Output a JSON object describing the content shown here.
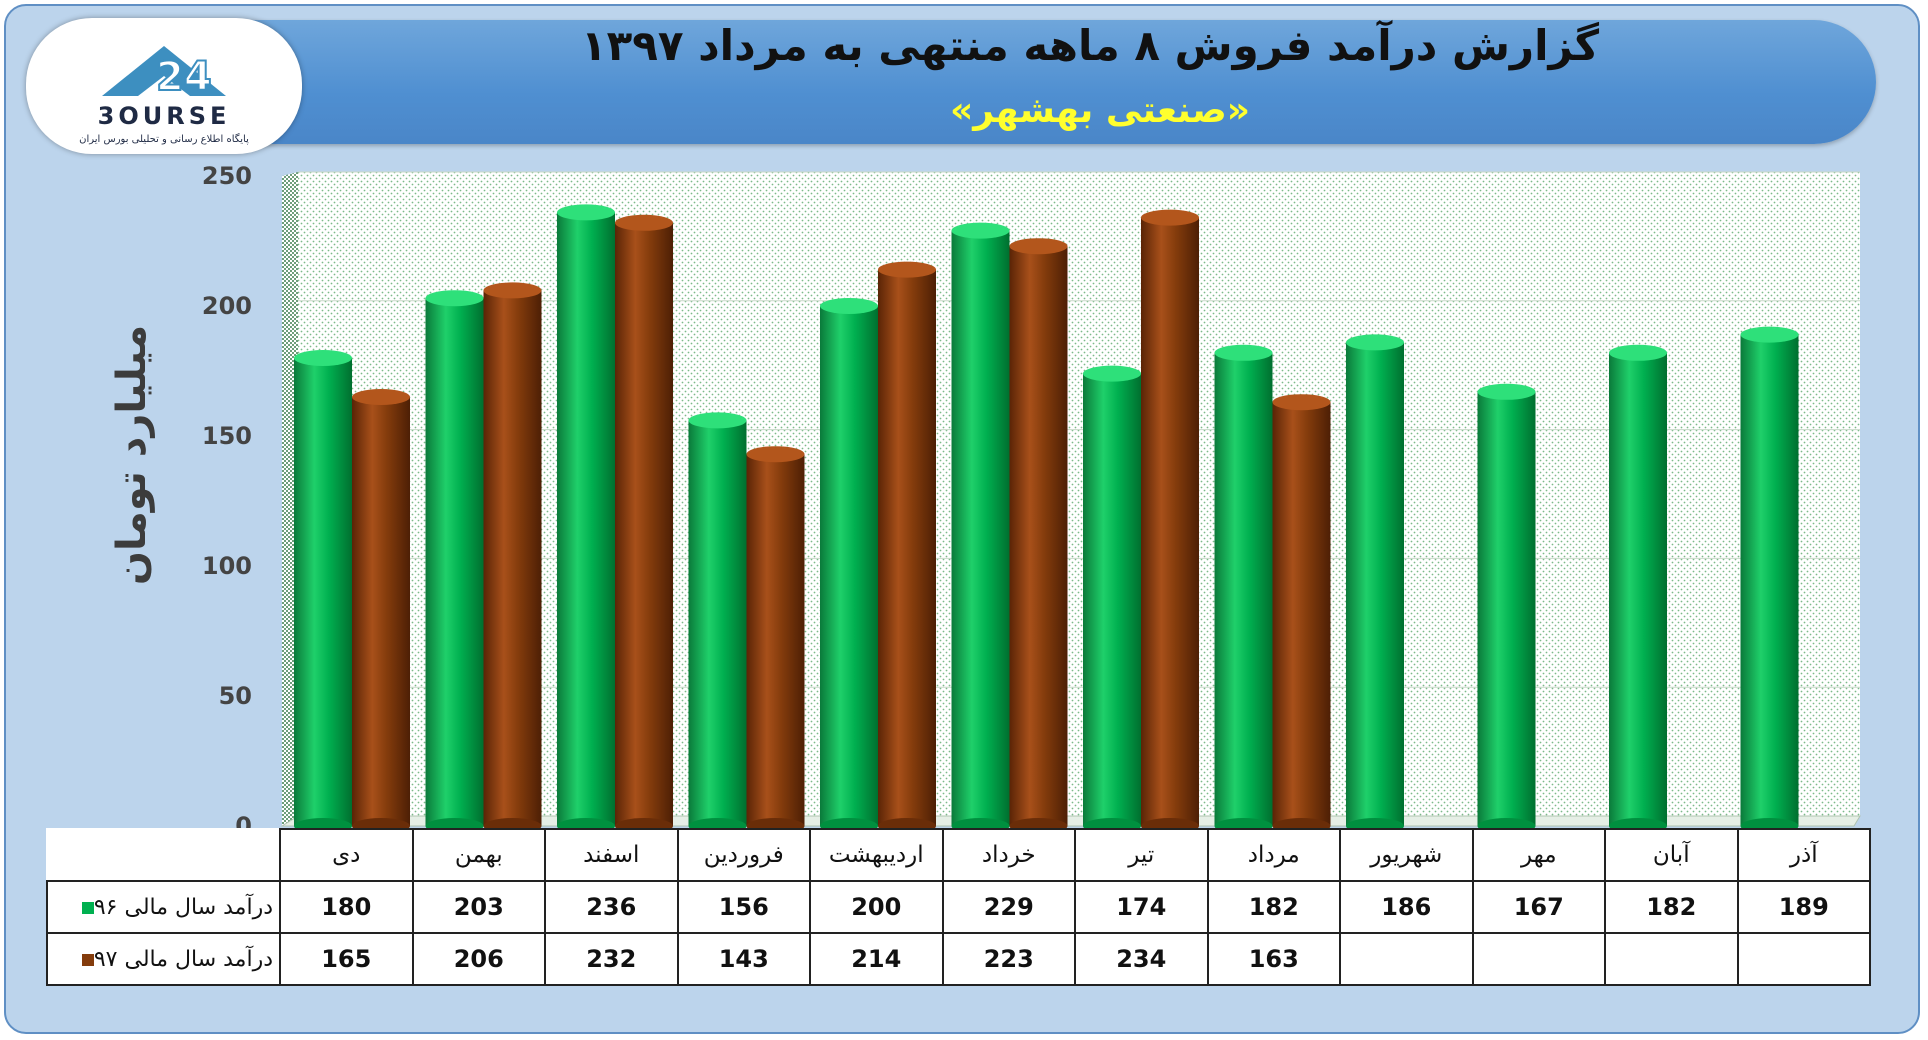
{
  "header": {
    "title": "گزارش درآمد فروش ۸ ماهه منتهی به مرداد ۱۳۹۷",
    "subtitle": "«صنعتی بهشهر»"
  },
  "logo": {
    "brand_text": "3OURSE",
    "tagline": "پایگاه اطلاع رسانی و تحلیلی بورس ایران"
  },
  "colors": {
    "series_96": "#00b050",
    "series_97": "#843c0c",
    "header_band": "#4f8fd1",
    "subtitle": "#ffff2e",
    "frame": "#bcd4ec"
  },
  "chart_data": {
    "type": "bar",
    "title": "گزارش درآمد فروش ۸ ماهه منتهی به مرداد ۱۳۹۷",
    "subtitle": "«صنعتی بهشهر»",
    "ylabel": "میلیارد تومان",
    "xlabel": "",
    "ylim": [
      0,
      250
    ],
    "yticks": [
      0,
      50,
      100,
      150,
      200,
      250
    ],
    "grid": true,
    "legend": "table-left",
    "categories": [
      "دی",
      "بهمن",
      "اسفند",
      "فروردین",
      "اردیبهشت",
      "خرداد",
      "تیر",
      "مرداد",
      "شهریور",
      "مهر",
      "آبان",
      "آذر"
    ],
    "series": [
      {
        "name": "درآمد سال مالی ۹۶",
        "values": [
          180,
          203,
          236,
          156,
          200,
          229,
          174,
          182,
          186,
          167,
          182,
          189
        ]
      },
      {
        "name": "درآمد سال مالی ۹۷",
        "values": [
          165,
          206,
          232,
          143,
          214,
          223,
          234,
          163,
          null,
          null,
          null,
          null
        ]
      }
    ]
  }
}
